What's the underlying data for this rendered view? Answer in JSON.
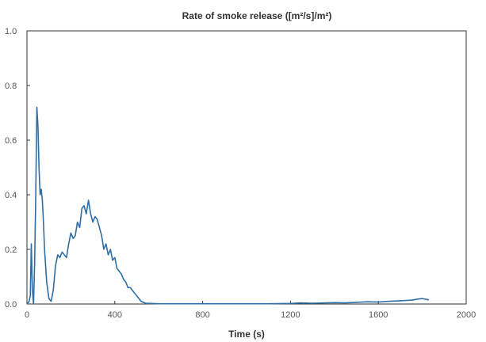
{
  "chart_data": {
    "type": "line",
    "title": "Rate of smoke release ([m²/s]/m²)",
    "xlabel": "Time (s)",
    "ylabel": "",
    "xlim": [
      0,
      2000
    ],
    "ylim": [
      0,
      1.0
    ],
    "x_ticks": [
      "0",
      "400",
      "800",
      "1200",
      "1600",
      "2000"
    ],
    "x_tick_values": [
      0,
      400,
      800,
      1200,
      1600,
      2000
    ],
    "y_ticks": [
      "0.0",
      "0.2",
      "0.4",
      "0.6",
      "0.8",
      "1.0"
    ],
    "y_tick_values": [
      0.0,
      0.2,
      0.4,
      0.6,
      0.8,
      1.0
    ],
    "grid": false,
    "legend": "none",
    "series": [
      {
        "color": "#2f6ea5",
        "x": [
          0,
          10,
          15,
          20,
          25,
          30,
          35,
          40,
          45,
          50,
          55,
          60,
          65,
          70,
          75,
          80,
          90,
          100,
          110,
          120,
          130,
          140,
          150,
          160,
          170,
          180,
          190,
          200,
          210,
          220,
          230,
          240,
          250,
          260,
          270,
          280,
          290,
          300,
          310,
          320,
          330,
          340,
          350,
          360,
          370,
          380,
          390,
          400,
          410,
          420,
          430,
          440,
          450,
          460,
          470,
          480,
          490,
          500,
          510,
          520,
          530,
          540,
          560,
          600,
          700,
          800,
          900,
          1000,
          1100,
          1200,
          1250,
          1300,
          1400,
          1450,
          1500,
          1550,
          1600,
          1650,
          1700,
          1750,
          1780,
          1800,
          1830
        ],
        "y": [
          0.0,
          0.01,
          0.03,
          0.22,
          0.05,
          0.0,
          0.15,
          0.4,
          0.72,
          0.65,
          0.5,
          0.4,
          0.42,
          0.38,
          0.3,
          0.2,
          0.08,
          0.02,
          0.01,
          0.05,
          0.14,
          0.18,
          0.17,
          0.19,
          0.18,
          0.17,
          0.22,
          0.26,
          0.24,
          0.25,
          0.3,
          0.28,
          0.35,
          0.36,
          0.33,
          0.38,
          0.33,
          0.3,
          0.32,
          0.31,
          0.28,
          0.25,
          0.2,
          0.22,
          0.18,
          0.2,
          0.16,
          0.17,
          0.13,
          0.12,
          0.11,
          0.09,
          0.08,
          0.06,
          0.06,
          0.05,
          0.04,
          0.03,
          0.02,
          0.01,
          0.006,
          0.003,
          0.002,
          0.001,
          0.001,
          0.001,
          0.001,
          0.001,
          0.001,
          0.002,
          0.004,
          0.003,
          0.005,
          0.004,
          0.006,
          0.008,
          0.007,
          0.01,
          0.012,
          0.014,
          0.018,
          0.02,
          0.015
        ]
      }
    ]
  }
}
